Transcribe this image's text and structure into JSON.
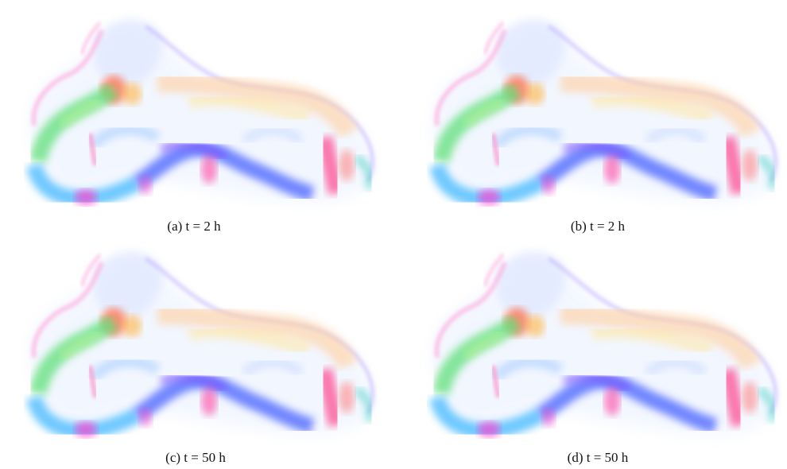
{
  "figure": {
    "panels": [
      {
        "caption": "(a) t = 2 h"
      },
      {
        "caption": "(b) t = 2 h"
      },
      {
        "caption": "(c) t = 50 h"
      },
      {
        "caption": "(d) t = 50 h"
      }
    ]
  }
}
